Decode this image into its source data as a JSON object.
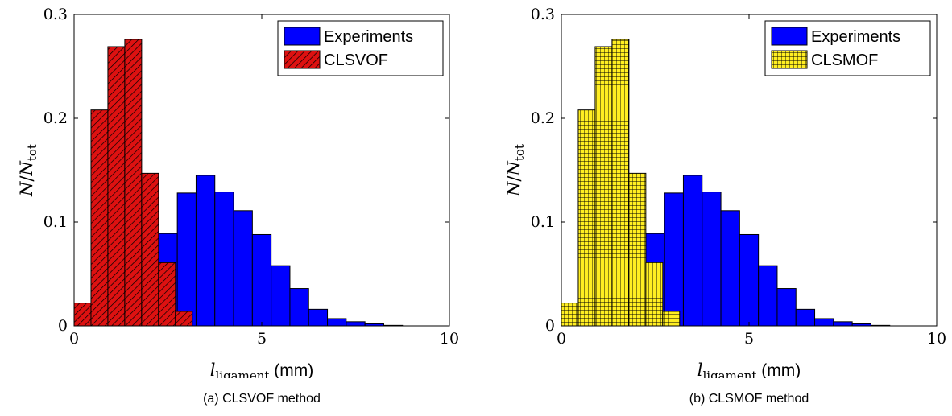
{
  "chart_data": [
    {
      "type": "bar",
      "caption": "(a) CLSVOF method",
      "xlabel": {
        "symbol": "l",
        "sub": "ligament",
        "unit": " (mm)"
      },
      "ylabel": {
        "num": "N",
        "den": "N",
        "den_sub": "tot"
      },
      "xlim": [
        0,
        10
      ],
      "ylim": [
        0,
        0.3
      ],
      "xticks": [
        0,
        5,
        10
      ],
      "yticks": [
        0,
        0.1,
        0.2,
        0.3
      ],
      "legend_position": "top-right",
      "series": [
        {
          "name": "Experiments",
          "color": "#0000ff",
          "pattern": "solid",
          "bins": [
            {
              "x0": 2.25,
              "x1": 2.75,
              "y": 0.089
            },
            {
              "x0": 2.75,
              "x1": 3.25,
              "y": 0.128
            },
            {
              "x0": 3.25,
              "x1": 3.75,
              "y": 0.145
            },
            {
              "x0": 3.75,
              "x1": 4.25,
              "y": 0.129
            },
            {
              "x0": 4.25,
              "x1": 4.75,
              "y": 0.111
            },
            {
              "x0": 4.75,
              "x1": 5.25,
              "y": 0.088
            },
            {
              "x0": 5.25,
              "x1": 5.75,
              "y": 0.058
            },
            {
              "x0": 5.75,
              "x1": 6.25,
              "y": 0.036
            },
            {
              "x0": 6.25,
              "x1": 6.75,
              "y": 0.016
            },
            {
              "x0": 6.75,
              "x1": 7.25,
              "y": 0.007
            },
            {
              "x0": 7.25,
              "x1": 7.75,
              "y": 0.004
            },
            {
              "x0": 7.75,
              "x1": 8.25,
              "y": 0.002
            },
            {
              "x0": 8.25,
              "x1": 8.75,
              "y": 0.0005
            }
          ]
        },
        {
          "name": "CLSVOF",
          "color": "#dd1111",
          "pattern": "hatch",
          "bins": [
            {
              "x0": 0.0,
              "x1": 0.45,
              "y": 0.022
            },
            {
              "x0": 0.45,
              "x1": 0.9,
              "y": 0.208
            },
            {
              "x0": 0.9,
              "x1": 1.35,
              "y": 0.269
            },
            {
              "x0": 1.35,
              "x1": 1.8,
              "y": 0.276
            },
            {
              "x0": 1.8,
              "x1": 2.25,
              "y": 0.147
            },
            {
              "x0": 2.25,
              "x1": 2.7,
              "y": 0.061
            },
            {
              "x0": 2.7,
              "x1": 3.15,
              "y": 0.014
            }
          ]
        }
      ]
    },
    {
      "type": "bar",
      "caption": "(b) CLSMOF method",
      "xlabel": {
        "symbol": "l",
        "sub": "ligament",
        "unit": " (mm)"
      },
      "ylabel": {
        "num": "N",
        "den": "N",
        "den_sub": "tot"
      },
      "xlim": [
        0,
        10
      ],
      "ylim": [
        0,
        0.3
      ],
      "xticks": [
        0,
        5,
        10
      ],
      "yticks": [
        0,
        0.1,
        0.2,
        0.3
      ],
      "legend_position": "top-right",
      "series": [
        {
          "name": "Experiments",
          "color": "#0000ff",
          "pattern": "solid",
          "bins": [
            {
              "x0": 2.25,
              "x1": 2.75,
              "y": 0.089
            },
            {
              "x0": 2.75,
              "x1": 3.25,
              "y": 0.128
            },
            {
              "x0": 3.25,
              "x1": 3.75,
              "y": 0.145
            },
            {
              "x0": 3.75,
              "x1": 4.25,
              "y": 0.129
            },
            {
              "x0": 4.25,
              "x1": 4.75,
              "y": 0.111
            },
            {
              "x0": 4.75,
              "x1": 5.25,
              "y": 0.088
            },
            {
              "x0": 5.25,
              "x1": 5.75,
              "y": 0.058
            },
            {
              "x0": 5.75,
              "x1": 6.25,
              "y": 0.036
            },
            {
              "x0": 6.25,
              "x1": 6.75,
              "y": 0.016
            },
            {
              "x0": 6.75,
              "x1": 7.25,
              "y": 0.007
            },
            {
              "x0": 7.25,
              "x1": 7.75,
              "y": 0.004
            },
            {
              "x0": 7.75,
              "x1": 8.25,
              "y": 0.002
            },
            {
              "x0": 8.25,
              "x1": 8.75,
              "y": 0.0005
            }
          ]
        },
        {
          "name": "CLSMOF",
          "color": "#ffee22",
          "pattern": "grid",
          "bins": [
            {
              "x0": 0.0,
              "x1": 0.45,
              "y": 0.022
            },
            {
              "x0": 0.45,
              "x1": 0.9,
              "y": 0.208
            },
            {
              "x0": 0.9,
              "x1": 1.35,
              "y": 0.269
            },
            {
              "x0": 1.35,
              "x1": 1.8,
              "y": 0.276
            },
            {
              "x0": 1.8,
              "x1": 2.25,
              "y": 0.147
            },
            {
              "x0": 2.25,
              "x1": 2.7,
              "y": 0.061
            },
            {
              "x0": 2.7,
              "x1": 3.15,
              "y": 0.014
            }
          ]
        }
      ]
    }
  ]
}
